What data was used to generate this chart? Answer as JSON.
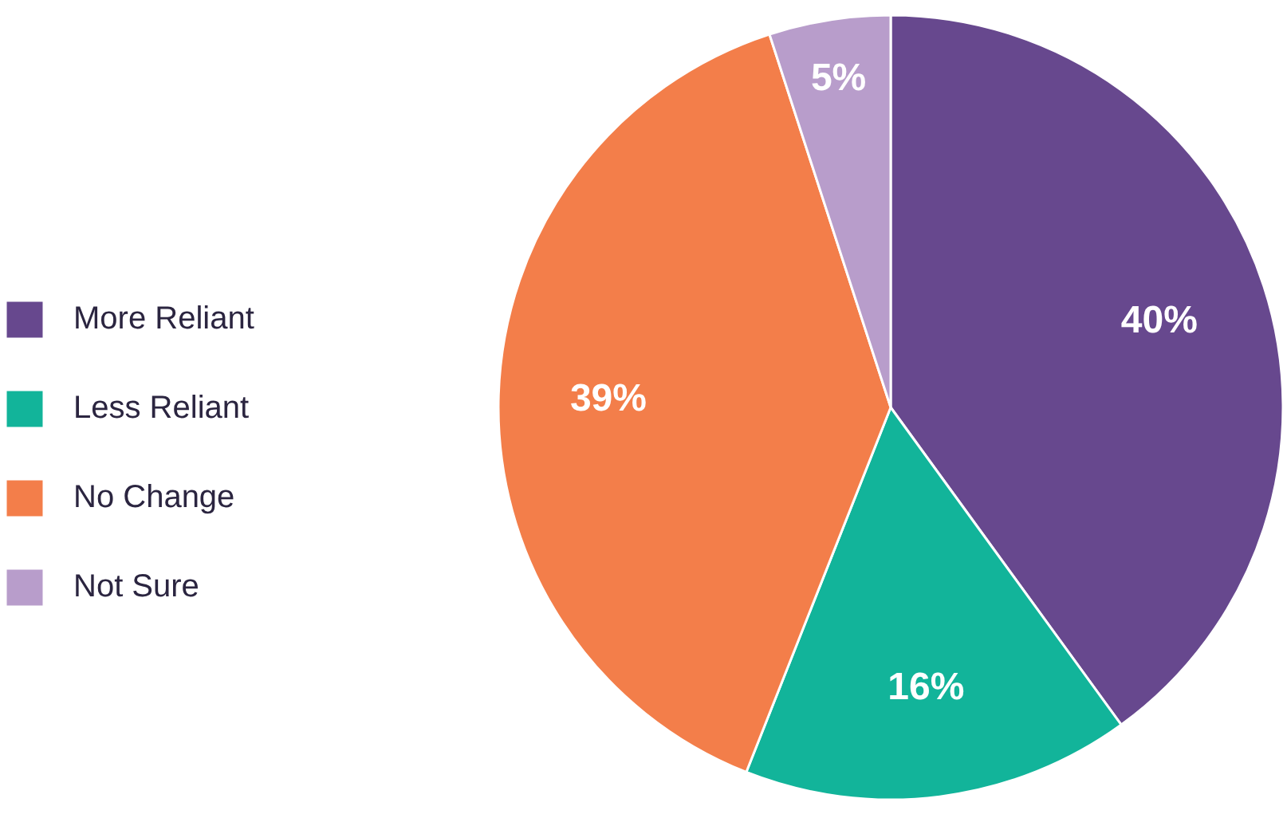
{
  "chart_data": {
    "type": "pie",
    "categories": [
      "More Reliant",
      "Less Reliant",
      "No Change",
      "Not Sure"
    ],
    "values": [
      40,
      16,
      39,
      5
    ],
    "colors": [
      "#67488e",
      "#12b49a",
      "#f37e4a",
      "#b89dcb"
    ],
    "value_labels": [
      "40%",
      "16%",
      "39%",
      "5%"
    ],
    "legend": "left"
  }
}
